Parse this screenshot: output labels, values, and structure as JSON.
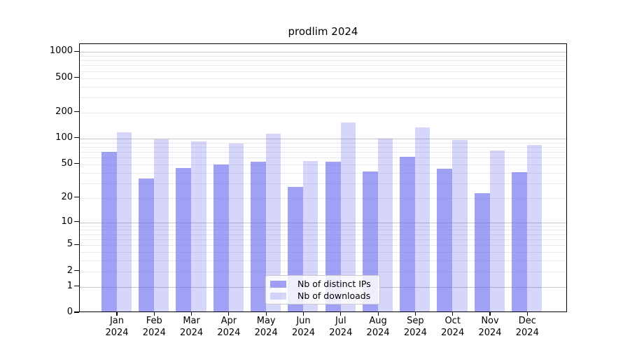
{
  "chart_data": {
    "type": "bar",
    "title": "prodlim 2024",
    "categories": [
      "Jan",
      "Feb",
      "Mar",
      "Apr",
      "May",
      "Jun",
      "Jul",
      "Aug",
      "Sep",
      "Oct",
      "Nov",
      "Dec"
    ],
    "year": "2024",
    "series": [
      {
        "name": "Nb of distinct IPs",
        "color": "#6666ee",
        "alpha": 0.62,
        "values": [
          68,
          33,
          44,
          48,
          52,
          26,
          52,
          40,
          59,
          43,
          22,
          39
        ]
      },
      {
        "name": "Nb of downloads",
        "color": "#6666ee",
        "alpha": 0.27,
        "values": [
          115,
          95,
          90,
          84,
          110,
          53,
          148,
          97,
          130,
          93,
          70,
          81
        ]
      }
    ],
    "yscale": "log1p",
    "ylim_top": 1230,
    "yticks": [
      0,
      1,
      2,
      5,
      10,
      20,
      50,
      100,
      200,
      500,
      1000
    ],
    "major_gridlines": [
      1,
      10,
      100,
      1000
    ],
    "minor_gridlines": [
      2,
      3,
      4,
      5,
      6,
      7,
      8,
      9,
      20,
      30,
      40,
      50,
      60,
      70,
      80,
      90,
      200,
      300,
      400,
      500,
      600,
      700,
      800,
      900
    ],
    "grid": true,
    "xlabel": "",
    "ylabel": "",
    "legend_position": "inside-bottom-center"
  },
  "colors": {
    "grid_major": "#c6c6c6",
    "grid_minor": "#eaeaea",
    "axis_frame": "#000000",
    "legend_border": "#c9c9c9",
    "bar_base": "#6666ee"
  }
}
